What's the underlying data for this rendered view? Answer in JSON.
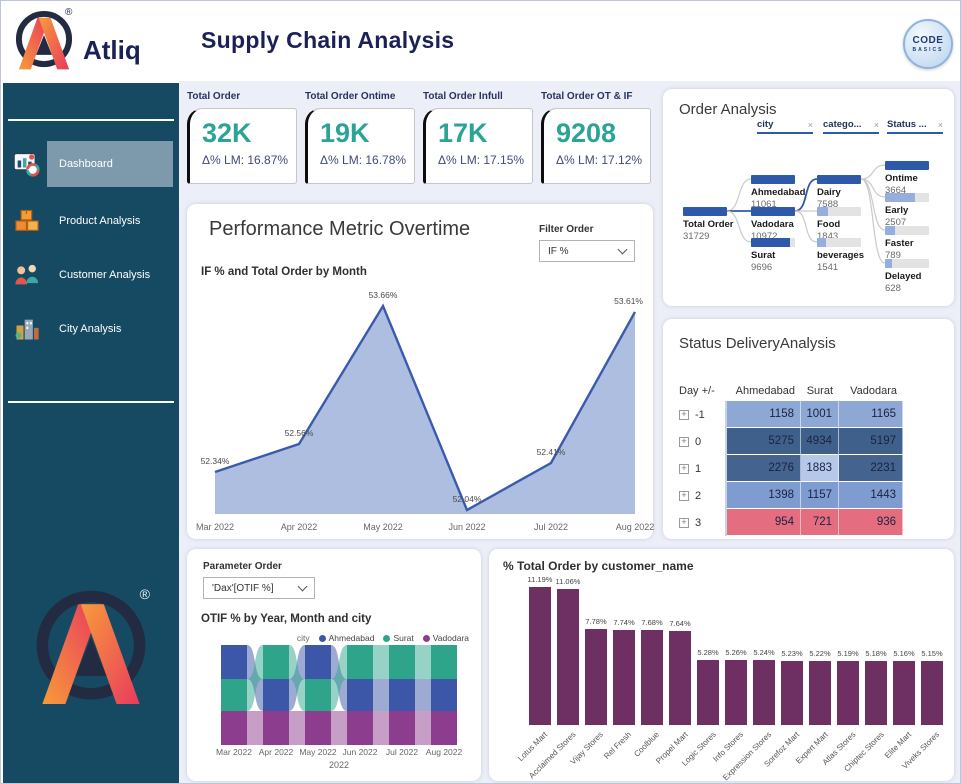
{
  "header": {
    "brand": "Atliq",
    "registered": "®",
    "title": "Supply Chain Analysis",
    "badge": {
      "line1": "CODE",
      "line2": "BASICS"
    }
  },
  "sidebar": {
    "items": [
      {
        "label": "Dashboard",
        "icon": "dashboard-icon",
        "active": true
      },
      {
        "label": "Product Analysis",
        "icon": "product-icon",
        "active": false
      },
      {
        "label": "Customer Analysis",
        "icon": "customer-icon",
        "active": false
      },
      {
        "label": "City Analysis",
        "icon": "city-icon",
        "active": false
      }
    ]
  },
  "kpis": [
    {
      "label": "Total Order",
      "value": "32K",
      "delta": "Δ% LM: 16.87%"
    },
    {
      "label": "Total Order Ontime",
      "value": "19K",
      "delta": "Δ% LM: 16.78%"
    },
    {
      "label": "Total Order Infull",
      "value": "17K",
      "delta": "Δ% LM: 17.15%"
    },
    {
      "label": "Total Order OT & IF",
      "value": "9208",
      "delta": "Δ% LM: 17.12%"
    }
  ],
  "order_analysis": {
    "title": "Order Analysis"
  },
  "performance": {
    "title": "Performance Metric Overtime",
    "filter_label": "Filter Order",
    "filter_value": "IF %",
    "subtitle": "IF % and Total Order by Month"
  },
  "status_delivery": {
    "title": "Status DeliveryAnalysis"
  },
  "parameter": {
    "label": "Parameter Order",
    "value": "'Dax'[OTIF %]",
    "chart_title": "OTIF % by Year, Month and city",
    "legend_title": "city",
    "year": "2022"
  },
  "customer_chart": {
    "title": "% Total Order by customer_name"
  },
  "colors": {
    "accent_teal": "#2ba496",
    "navy": "#1b2157",
    "sidebar": "#164a62",
    "bar_purple": "#6e2f63",
    "line_blue": "#3a5bad",
    "area_fill": "#aebee1",
    "tree_dark": "#2e59a8",
    "tree_light": "#96aedd",
    "status_red": "#e46e80"
  },
  "chart_data": [
    {
      "id": "if_by_month",
      "type": "area",
      "title": "IF % and Total Order by Month",
      "x": [
        "Mar 2022",
        "Apr 2022",
        "May 2022",
        "Jun 2022",
        "Jul 2022",
        "Aug 2022"
      ],
      "values": [
        52.34,
        52.56,
        53.66,
        52.04,
        52.41,
        53.61
      ],
      "unit": "%",
      "ylim": [
        51.9,
        53.8
      ],
      "grid": false,
      "legend_position": "none"
    },
    {
      "id": "otif_ribbon",
      "type": "area",
      "subtype": "ribbon",
      "title": "OTIF % by Year, Month and city",
      "x": [
        "Mar 2022",
        "Apr 2022",
        "May 2022",
        "Jun 2022",
        "Jul 2022",
        "Aug 2022"
      ],
      "year_label": "2022",
      "series_colors": {
        "Ahmedabad": "#3c57a7",
        "Surat": "#2ea58b",
        "Vadodara": "#8d3d8d"
      },
      "stack_order_top_to_bottom": [
        [
          "Ahmedabad",
          "Surat",
          "Vadodara"
        ],
        [
          "Surat",
          "Ahmedabad",
          "Vadodara"
        ],
        [
          "Ahmedabad",
          "Surat",
          "Vadodara"
        ],
        [
          "Surat",
          "Ahmedabad",
          "Vadodara"
        ],
        [
          "Surat",
          "Ahmedabad",
          "Vadodara"
        ],
        [
          "Surat",
          "Ahmedabad",
          "Vadodara"
        ]
      ],
      "legend": [
        "Ahmedabad",
        "Surat",
        "Vadodara"
      ],
      "legend_position": "top-right"
    },
    {
      "id": "customer_bars",
      "type": "bar",
      "title": "% Total Order by customer_name",
      "categories": [
        "Lotus Mart",
        "Acclaimed Stores",
        "Vijay Stores",
        "Rel Fresh",
        "Coolblue",
        "Propel Mart",
        "Logic Stores",
        "Info Stores",
        "Expression Stores",
        "Sorefoz Mart",
        "Expert Mart",
        "Atlas Stores",
        "Chiptec Stores",
        "Elite Mart",
        "Viveks Stores"
      ],
      "values": [
        11.19,
        11.06,
        7.78,
        7.74,
        7.68,
        7.64,
        5.28,
        5.26,
        5.24,
        5.23,
        5.22,
        5.19,
        5.18,
        5.16,
        5.15
      ],
      "unit": "%",
      "bar_color": "#6e2f63",
      "ylim": [
        0,
        12
      ]
    },
    {
      "id": "status_table",
      "type": "table",
      "title": "Status DeliveryAnalysis",
      "columns": [
        "Day +/-",
        "Ahmedabad",
        "Surat",
        "Vadodara"
      ],
      "rows": [
        {
          "day": "-1",
          "values": [
            1158,
            1001,
            1165
          ],
          "cell_colors": [
            "#8ea8d6",
            "#8ea8d6",
            "#8ea8d6"
          ]
        },
        {
          "day": "0",
          "values": [
            5275,
            4934,
            5197
          ],
          "cell_colors": [
            "#40608c",
            "#40608c",
            "#40608c"
          ]
        },
        {
          "day": "1",
          "values": [
            2276,
            1883,
            2231
          ],
          "cell_colors": [
            "#44638e",
            "#b5c8ea",
            "#44638e"
          ]
        },
        {
          "day": "2",
          "values": [
            1398,
            1157,
            1443
          ],
          "cell_colors": [
            "#7f9cd0",
            "#7f9cd0",
            "#7f9cd0"
          ]
        },
        {
          "day": "3",
          "values": [
            954,
            721,
            936
          ],
          "cell_colors": [
            "#e46e80",
            "#e46e80",
            "#e46e80"
          ]
        }
      ]
    },
    {
      "id": "order_tree",
      "type": "table",
      "subtype": "decomposition-tree",
      "title": "Order Analysis",
      "root": {
        "label": "Total Order",
        "value": 31729,
        "fill": 1,
        "style": "dark"
      },
      "levels": [
        {
          "chip": "city",
          "nodes": [
            {
              "label": "Ahmedabad",
              "value": 11061,
              "fill": 1,
              "style": "dark"
            },
            {
              "label": "Vadodara",
              "value": 10972,
              "fill": 0.99,
              "style": "dark",
              "selected": true
            },
            {
              "label": "Surat",
              "value": 9696,
              "fill": 0.88,
              "style": "dark"
            }
          ]
        },
        {
          "chip": "catego...",
          "nodes": [
            {
              "label": "Dairy",
              "value": 7588,
              "fill": 1,
              "style": "dark",
              "selected": true
            },
            {
              "label": "Food",
              "value": 1843,
              "fill": 0.24,
              "style": "light"
            },
            {
              "label": "beverages",
              "value": 1541,
              "fill": 0.2,
              "style": "light"
            }
          ]
        },
        {
          "chip": "Status ...",
          "nodes": [
            {
              "label": "Ontime",
              "value": 3664,
              "fill": 1,
              "style": "dark"
            },
            {
              "label": "Early",
              "value": 2507,
              "fill": 0.68,
              "style": "light"
            },
            {
              "label": "Faster",
              "value": 789,
              "fill": 0.22,
              "style": "light"
            },
            {
              "label": "Delayed",
              "value": 628,
              "fill": 0.17,
              "style": "light"
            }
          ]
        }
      ]
    }
  ]
}
